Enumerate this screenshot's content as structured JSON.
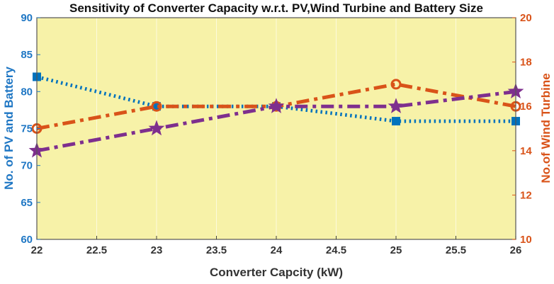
{
  "chart_data": {
    "type": "line",
    "title": "Sensitivity of Converter Capacity w.r.t. PV,Wind Turbine and Battery Size",
    "xlabel": "Converter Capcity (kW)",
    "ylabel_left": "No. of PV and Battery",
    "ylabel_right": "No.of Wind Turbine",
    "xlim": [
      22,
      26
    ],
    "ylim_left": [
      60,
      90
    ],
    "ylim_right": [
      10,
      20
    ],
    "x_ticks": [
      "22",
      "22.5",
      "23",
      "23.5",
      "24",
      "24.5",
      "25",
      "25.5",
      "26"
    ],
    "y_left_ticks": [
      "60",
      "65",
      "70",
      "75",
      "80",
      "85",
      "90"
    ],
    "y_right_ticks": [
      "10",
      "12",
      "14",
      "16",
      "18",
      "20"
    ],
    "x": [
      22,
      23,
      24,
      25,
      26
    ],
    "series": [
      {
        "name": "PV",
        "axis": "left",
        "values": [
          82,
          78,
          78,
          76,
          76
        ],
        "marker": "square",
        "style": "dotted"
      },
      {
        "name": "Wind Turbine",
        "axis": "right",
        "values": [
          15,
          16,
          16,
          17,
          16
        ],
        "marker": "circle",
        "style": "dashdot"
      },
      {
        "name": "Battery",
        "axis": "left",
        "values": [
          72,
          75,
          78,
          78,
          80
        ],
        "marker": "star",
        "style": "dashdot"
      }
    ],
    "colors": {
      "plot_bg": "#f7f2a8",
      "left_axis": "#1f77c4",
      "right_axis": "#d95319",
      "pv": "#0072bd",
      "wind": "#d95319",
      "battery": "#7e2f8e",
      "grid": "#ffffff"
    }
  }
}
